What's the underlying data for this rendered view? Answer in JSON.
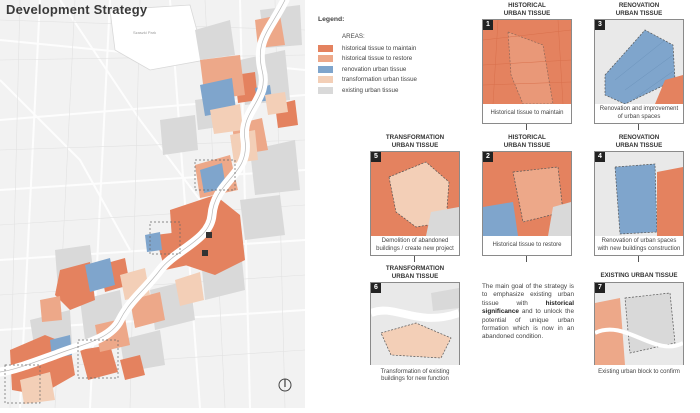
{
  "page": {
    "title": "Development Strategy"
  },
  "map": {
    "park_label": "Szaszki Park"
  },
  "legend": {
    "title": "Legend:",
    "subtitle": "AREAS:",
    "items": [
      {
        "label": "historical tissue to maintain",
        "color": "#e4825f"
      },
      {
        "label": "historical tissue to restore",
        "color": "#eda889"
      },
      {
        "label": "renovation urban tissue",
        "color": "#7fa5cc"
      },
      {
        "label": "transformation urban tissue",
        "color": "#f3cfb7"
      },
      {
        "label": "existing urban tissue",
        "color": "#d9d9d9"
      }
    ]
  },
  "panels": [
    {
      "num": "1",
      "title": "HISTORICAL\nURBAN TISSUE",
      "caption": "Historical tissue to maintain"
    },
    {
      "num": "3",
      "title": "RENOVATION\nURBAN TISSUE",
      "caption": "Renovation and improvement of urban spaces"
    },
    {
      "num": "5",
      "title": "TRANSFORMATION\nURBAN TISSUE",
      "caption": "Demolition of abandoned buildings / create new project"
    },
    {
      "num": "2",
      "title": "HISTORICAL\nURBAN TISSUE",
      "caption": "Historical tissue to restore"
    },
    {
      "num": "4",
      "title": "RENOVATION\nURBAN TISSUE",
      "caption": "Renovation of urban spaces with new buildings construction"
    },
    {
      "num": "6",
      "title": "TRANSFORMATION\nURBAN TISSUE",
      "caption": "Transformation of existing buildings for new function"
    },
    {
      "num": "7",
      "title": "EXISTING  URBAN TISSUE",
      "caption": "Existing urban block to confirm"
    }
  ],
  "summary": {
    "pre": "The main goal of the strategy is to emphasize existing urban tissue with ",
    "bold": "historical significance",
    "post": " and to unlock the potential of unique urban formation which is now in an abandoned condition."
  }
}
